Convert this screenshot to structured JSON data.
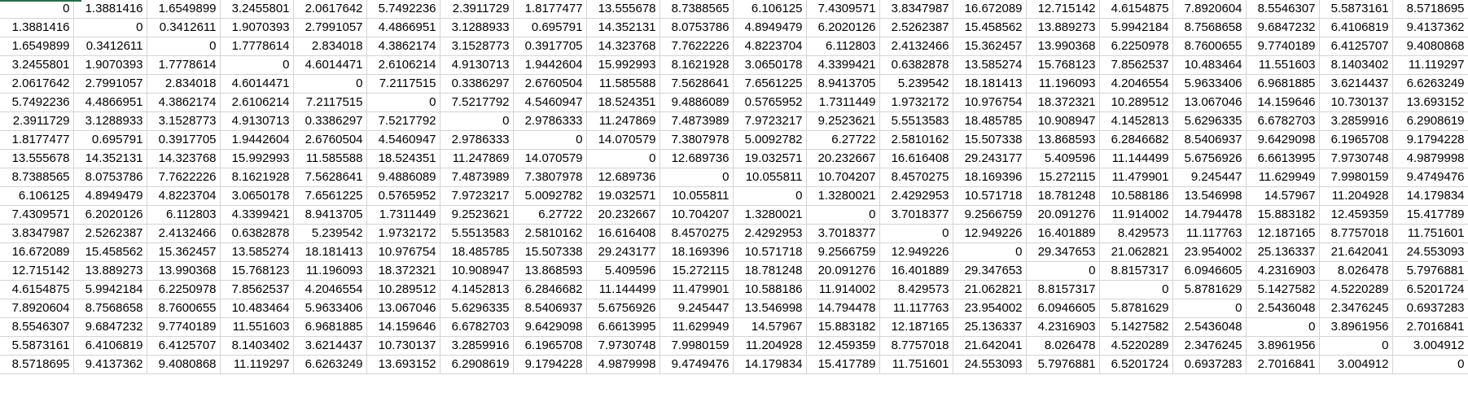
{
  "sheet": {
    "selection_color": "#1e7145",
    "gridline_color": "#d4d4d4",
    "rows": [
      [
        "0",
        "1.3881416",
        "1.6549899",
        "3.2455801",
        "2.0617642",
        "5.7492236",
        "2.3911729",
        "1.8177477",
        "13.555678",
        "8.7388565",
        "6.106125",
        "7.4309571",
        "3.8347987",
        "16.672089",
        "12.715142",
        "4.6154875",
        "7.8920604",
        "8.5546307",
        "5.5873161",
        "8.5718695"
      ],
      [
        "1.3881416",
        "0",
        "0.3412611",
        "1.9070393",
        "2.7991057",
        "4.4866951",
        "3.1288933",
        "0.695791",
        "14.352131",
        "8.0753786",
        "4.8949479",
        "6.2020126",
        "2.5262387",
        "15.458562",
        "13.889273",
        "5.9942184",
        "8.7568658",
        "9.6847232",
        "6.4106819",
        "9.4137362"
      ],
      [
        "1.6549899",
        "0.3412611",
        "0",
        "1.7778614",
        "2.834018",
        "4.3862174",
        "3.1528773",
        "0.3917705",
        "14.323768",
        "7.7622226",
        "4.8223704",
        "6.112803",
        "2.4132466",
        "15.362457",
        "13.990368",
        "6.2250978",
        "8.7600655",
        "9.7740189",
        "6.4125707",
        "9.4080868"
      ],
      [
        "3.2455801",
        "1.9070393",
        "1.7778614",
        "0",
        "4.6014471",
        "2.6106214",
        "4.9130713",
        "1.9442604",
        "15.992993",
        "8.1621928",
        "3.0650178",
        "4.3399421",
        "0.6382878",
        "13.585274",
        "15.768123",
        "7.8562537",
        "10.483464",
        "11.551603",
        "8.1403402",
        "11.119297"
      ],
      [
        "2.0617642",
        "2.7991057",
        "2.834018",
        "4.6014471",
        "0",
        "7.2117515",
        "0.3386297",
        "2.6760504",
        "11.585588",
        "7.5628641",
        "7.6561225",
        "8.9413705",
        "5.239542",
        "18.181413",
        "11.196093",
        "4.2046554",
        "5.9633406",
        "6.9681885",
        "3.6214437",
        "6.6263249"
      ],
      [
        "5.7492236",
        "4.4866951",
        "4.3862174",
        "2.6106214",
        "7.2117515",
        "0",
        "7.5217792",
        "4.5460947",
        "18.524351",
        "9.4886089",
        "0.5765952",
        "1.7311449",
        "1.9732172",
        "10.976754",
        "18.372321",
        "10.289512",
        "13.067046",
        "14.159646",
        "10.730137",
        "13.693152"
      ],
      [
        "2.3911729",
        "3.1288933",
        "3.1528773",
        "4.9130713",
        "0.3386297",
        "7.5217792",
        "0",
        "2.9786333",
        "11.247869",
        "7.4873989",
        "7.9723217",
        "9.2523621",
        "5.5513583",
        "18.485785",
        "10.908947",
        "4.1452813",
        "5.6296335",
        "6.6782703",
        "3.2859916",
        "6.2908619"
      ],
      [
        "1.8177477",
        "0.695791",
        "0.3917705",
        "1.9442604",
        "2.6760504",
        "4.5460947",
        "2.9786333",
        "0",
        "14.070579",
        "7.3807978",
        "5.0092782",
        "6.27722",
        "2.5810162",
        "15.507338",
        "13.868593",
        "6.2846682",
        "8.5406937",
        "9.6429098",
        "6.1965708",
        "9.1794228"
      ],
      [
        "13.555678",
        "14.352131",
        "14.323768",
        "15.992993",
        "11.585588",
        "18.524351",
        "11.247869",
        "14.070579",
        "0",
        "12.689736",
        "19.032571",
        "20.232667",
        "16.616408",
        "29.243177",
        "5.409596",
        "11.144499",
        "5.6756926",
        "6.6613995",
        "7.9730748",
        "4.9879998"
      ],
      [
        "8.7388565",
        "8.0753786",
        "7.7622226",
        "8.1621928",
        "7.5628641",
        "9.4886089",
        "7.4873989",
        "7.3807978",
        "12.689736",
        "0",
        "10.055811",
        "10.704207",
        "8.4570275",
        "18.169396",
        "15.272115",
        "11.479901",
        "9.245447",
        "11.629949",
        "7.9980159",
        "9.4749476"
      ],
      [
        "6.106125",
        "4.8949479",
        "4.8223704",
        "3.0650178",
        "7.6561225",
        "0.5765952",
        "7.9723217",
        "5.0092782",
        "19.032571",
        "10.055811",
        "0",
        "1.3280021",
        "2.4292953",
        "10.571718",
        "18.781248",
        "10.588186",
        "13.546998",
        "14.57967",
        "11.204928",
        "14.179834"
      ],
      [
        "7.4309571",
        "6.2020126",
        "6.112803",
        "4.3399421",
        "8.9413705",
        "1.7311449",
        "9.2523621",
        "6.27722",
        "20.232667",
        "10.704207",
        "1.3280021",
        "0",
        "3.7018377",
        "9.2566759",
        "20.091276",
        "11.914002",
        "14.794478",
        "15.883182",
        "12.459359",
        "15.417789"
      ],
      [
        "3.8347987",
        "2.5262387",
        "2.4132466",
        "0.6382878",
        "5.239542",
        "1.9732172",
        "5.5513583",
        "2.5810162",
        "16.616408",
        "8.4570275",
        "2.4292953",
        "3.7018377",
        "0",
        "12.949226",
        "16.401889",
        "8.429573",
        "11.117763",
        "12.187165",
        "8.7757018",
        "11.751601"
      ],
      [
        "16.672089",
        "15.458562",
        "15.362457",
        "13.585274",
        "18.181413",
        "10.976754",
        "18.485785",
        "15.507338",
        "29.243177",
        "18.169396",
        "10.571718",
        "9.2566759",
        "12.949226",
        "0",
        "29.347653",
        "21.062821",
        "23.954002",
        "25.136337",
        "21.642041",
        "24.553093"
      ],
      [
        "12.715142",
        "13.889273",
        "13.990368",
        "15.768123",
        "11.196093",
        "18.372321",
        "10.908947",
        "13.868593",
        "5.409596",
        "15.272115",
        "18.781248",
        "20.091276",
        "16.401889",
        "29.347653",
        "0",
        "8.8157317",
        "6.0946605",
        "4.2316903",
        "8.026478",
        "5.7976881"
      ],
      [
        "4.6154875",
        "5.9942184",
        "6.2250978",
        "7.8562537",
        "4.2046554",
        "10.289512",
        "4.1452813",
        "6.2846682",
        "11.144499",
        "11.479901",
        "10.588186",
        "11.914002",
        "8.429573",
        "21.062821",
        "8.8157317",
        "0",
        "5.8781629",
        "5.1427582",
        "4.5220289",
        "6.5201724"
      ],
      [
        "7.8920604",
        "8.7568658",
        "8.7600655",
        "10.483464",
        "5.9633406",
        "13.067046",
        "5.6296335",
        "8.5406937",
        "5.6756926",
        "9.245447",
        "13.546998",
        "14.794478",
        "11.117763",
        "23.954002",
        "6.0946605",
        "5.8781629",
        "0",
        "2.5436048",
        "2.3476245",
        "0.6937283"
      ],
      [
        "8.5546307",
        "9.6847232",
        "9.7740189",
        "11.551603",
        "6.9681885",
        "14.159646",
        "6.6782703",
        "9.6429098",
        "6.6613995",
        "11.629949",
        "14.57967",
        "15.883182",
        "12.187165",
        "25.136337",
        "4.2316903",
        "5.1427582",
        "2.5436048",
        "0",
        "3.8961956",
        "2.7016841"
      ],
      [
        "5.5873161",
        "6.4106819",
        "6.4125707",
        "8.1403402",
        "3.6214437",
        "10.730137",
        "3.2859916",
        "6.1965708",
        "7.9730748",
        "7.9980159",
        "11.204928",
        "12.459359",
        "8.7757018",
        "21.642041",
        "8.026478",
        "4.5220289",
        "2.3476245",
        "3.8961956",
        "0",
        "3.004912"
      ],
      [
        "8.5718695",
        "9.4137362",
        "9.4080868",
        "11.119297",
        "6.6263249",
        "13.693152",
        "6.2908619",
        "9.1794228",
        "4.9879998",
        "9.4749476",
        "14.179834",
        "15.417789",
        "11.751601",
        "24.553093",
        "5.7976881",
        "6.5201724",
        "0.6937283",
        "2.7016841",
        "3.004912",
        "0"
      ]
    ]
  }
}
